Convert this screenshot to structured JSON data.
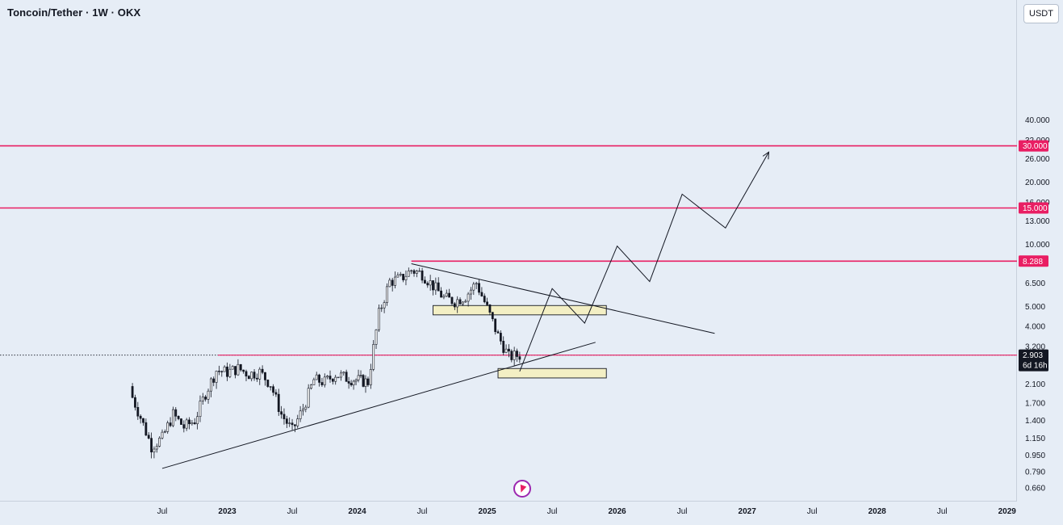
{
  "header": {
    "title": "Toncoin/Tether · 1W · OKX"
  },
  "toolbar": {
    "currency_label": "USDT"
  },
  "colors": {
    "background": "#e6edf6",
    "level_line": "#e91e63",
    "candle": "#131722",
    "zone_fill": "#f3efc4",
    "current_price": "#131722"
  },
  "price_axis": {
    "ticks": [
      "40.000",
      "32.000",
      "26.000",
      "20.000",
      "16.000",
      "13.000",
      "10.000",
      "6.500",
      "5.000",
      "4.000",
      "3.200",
      "2.100",
      "1.700",
      "1.400",
      "1.150",
      "0.950",
      "0.790",
      "0.660"
    ],
    "level_labels": [
      "30.000",
      "15.000",
      "8.288"
    ],
    "current_price": "2.903",
    "countdown": "6d 16h"
  },
  "time_axis": {
    "ticks": [
      "Jul",
      "2023",
      "Jul",
      "2024",
      "Jul",
      "2025",
      "Jul",
      "2026",
      "Jul",
      "2027",
      "Jul",
      "2028",
      "Jul",
      "2029"
    ]
  },
  "chart_data": {
    "type": "candlestick",
    "title": "Toncoin/Tether · 1W · OKX",
    "y_scale": "log",
    "ylim": [
      0.62,
      42
    ],
    "xlim": [
      "2022-03",
      "2029-03"
    ],
    "horizontal_levels": [
      30.0,
      15.0,
      8.288,
      2.903
    ],
    "current_price": 2.903,
    "price_path": [
      {
        "date": "2022-04",
        "close": 1.95
      },
      {
        "date": "2022-05",
        "close": 1.45
      },
      {
        "date": "2022-06",
        "close": 1.05
      },
      {
        "date": "2022-07",
        "close": 1.15
      },
      {
        "date": "2022-08",
        "close": 1.5
      },
      {
        "date": "2022-09",
        "close": 1.3
      },
      {
        "date": "2022-10",
        "close": 1.4
      },
      {
        "date": "2022-11",
        "close": 1.9
      },
      {
        "date": "2022-12",
        "close": 2.45
      },
      {
        "date": "2023-01",
        "close": 2.4
      },
      {
        "date": "2023-02",
        "close": 2.5
      },
      {
        "date": "2023-03",
        "close": 2.35
      },
      {
        "date": "2023-04",
        "close": 2.4
      },
      {
        "date": "2023-05",
        "close": 2.1
      },
      {
        "date": "2023-06",
        "close": 1.5
      },
      {
        "date": "2023-07",
        "close": 1.25
      },
      {
        "date": "2023-08",
        "close": 1.6
      },
      {
        "date": "2023-09",
        "close": 2.2
      },
      {
        "date": "2023-10",
        "close": 2.15
      },
      {
        "date": "2023-11",
        "close": 2.35
      },
      {
        "date": "2023-12",
        "close": 2.25
      },
      {
        "date": "2024-02",
        "close": 2.15
      },
      {
        "date": "2024-03",
        "close": 4.6
      },
      {
        "date": "2024-04",
        "close": 6.6
      },
      {
        "date": "2024-05",
        "close": 6.8
      },
      {
        "date": "2024-06",
        "close": 7.5
      },
      {
        "date": "2024-07",
        "close": 7.2
      },
      {
        "date": "2024-08",
        "close": 6.3
      },
      {
        "date": "2024-09",
        "close": 5.5
      },
      {
        "date": "2024-10",
        "close": 5.3
      },
      {
        "date": "2024-11",
        "close": 5.6
      },
      {
        "date": "2024-12",
        "close": 6.5
      },
      {
        "date": "2025-01",
        "close": 4.9
      },
      {
        "date": "2025-02",
        "close": 3.6
      },
      {
        "date": "2025-03",
        "close": 2.85
      },
      {
        "date": "2025-04",
        "close": 2.903
      }
    ],
    "zones": [
      {
        "from": "2024-08",
        "to": "2025-12",
        "low": 4.55,
        "high": 5.05
      },
      {
        "from": "2025-02",
        "to": "2025-12",
        "low": 2.25,
        "high": 2.5
      }
    ],
    "trendlines": [
      {
        "from": {
          "date": "2022-07",
          "price": 0.82
        },
        "to": {
          "date": "2025-11",
          "price": 3.35
        }
      },
      {
        "from": {
          "date": "2024-06",
          "price": 8.05
        },
        "to": {
          "date": "2026-10",
          "price": 3.7
        }
      }
    ],
    "projection_path": [
      {
        "date": "2025-04",
        "price": 2.42
      },
      {
        "date": "2025-07",
        "price": 6.1
      },
      {
        "date": "2025-10",
        "price": 4.15
      },
      {
        "date": "2026-01",
        "price": 9.8
      },
      {
        "date": "2026-04",
        "price": 6.6
      },
      {
        "date": "2026-07",
        "price": 17.5
      },
      {
        "date": "2026-11",
        "price": 12.0
      },
      {
        "date": "2027-03",
        "price": 28.0
      }
    ]
  }
}
